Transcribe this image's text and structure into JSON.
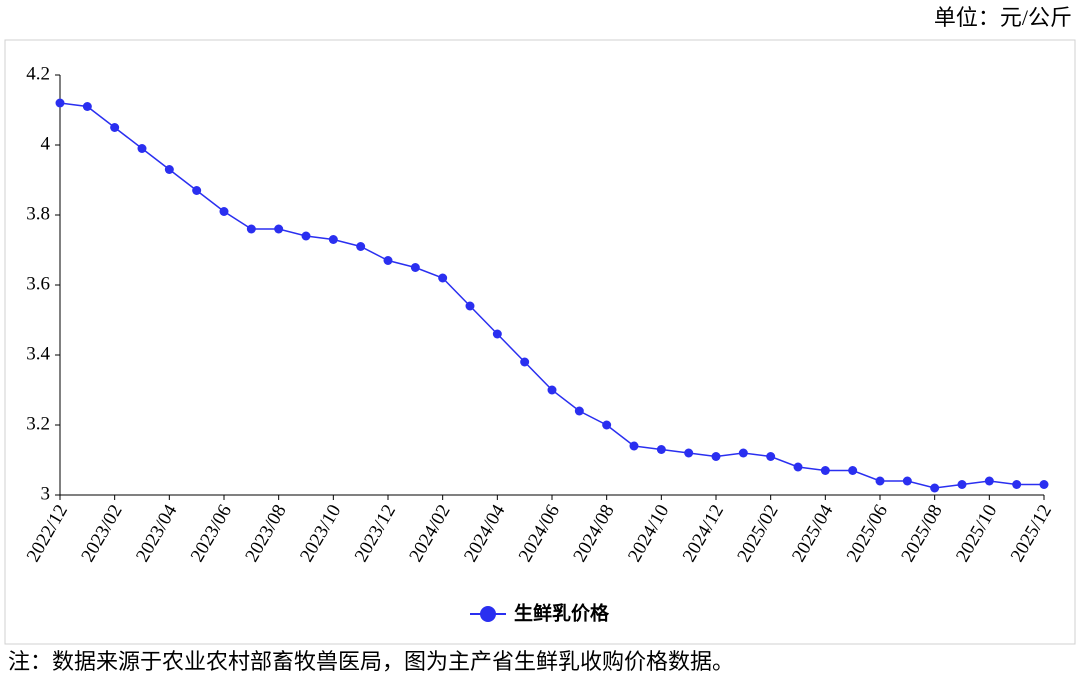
{
  "unit_note": "单位：元/公斤",
  "footnote": "注：数据来源于农业农村部畜牧兽医局，图为主产省生鲜乳收购价格数据。",
  "chart_data": {
    "type": "line",
    "categories": [
      "2022/12",
      null,
      "2023/02",
      null,
      "2023/04",
      null,
      "2023/06",
      null,
      "2023/08",
      null,
      "2023/10",
      null,
      "2023/12",
      null,
      "2024/02",
      null,
      "2024/04",
      null,
      "2024/06",
      null,
      "2024/08",
      null,
      "2024/10",
      null,
      "2024/12",
      null,
      "2025/02",
      null,
      "2025/04",
      null,
      "2025/06",
      null,
      "2025/08",
      null,
      "2025/10",
      null,
      "2025/12"
    ],
    "series": [
      {
        "name": "生鲜乳价格",
        "color": "#2a2ff0",
        "values": [
          4.12,
          4.11,
          4.05,
          3.99,
          3.93,
          3.87,
          3.81,
          3.76,
          3.76,
          3.74,
          3.73,
          3.71,
          3.67,
          3.65,
          3.62,
          3.54,
          3.46,
          3.38,
          3.3,
          3.24,
          3.2,
          3.14,
          3.13,
          3.12,
          3.11,
          3.12,
          3.11,
          3.08,
          3.07,
          3.07,
          3.04,
          3.04,
          3.02,
          3.03,
          3.04,
          3.03,
          3.03
        ]
      }
    ],
    "ylim": [
      3,
      4.2
    ],
    "yticks": [
      3,
      3.2,
      3.4,
      3.6,
      3.8,
      4,
      4.2
    ],
    "grid": false,
    "legend": "bottom"
  }
}
